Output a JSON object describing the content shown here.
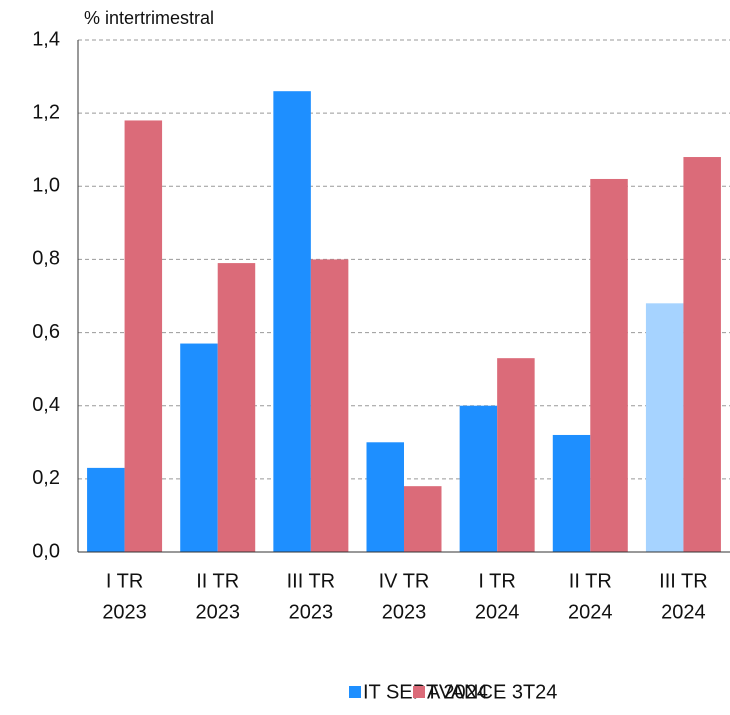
{
  "chart_data": {
    "type": "bar",
    "ylabel": "% intertrimestral",
    "categories": [
      [
        "I TR",
        "2023"
      ],
      [
        "II TR",
        "2023"
      ],
      [
        "III TR",
        "2023"
      ],
      [
        "IV TR",
        "2023"
      ],
      [
        "I TR",
        "2024"
      ],
      [
        "II TR",
        "2024"
      ],
      [
        "III TR",
        "2024"
      ]
    ],
    "series": [
      {
        "name": "IT SEPT 2024",
        "color": "#1e8fff",
        "colors": [
          "#1e8fff",
          "#1e8fff",
          "#1e8fff",
          "#1e8fff",
          "#1e8fff",
          "#1e8fff",
          "#a6d3ff"
        ],
        "values": [
          0.23,
          0.57,
          1.26,
          0.3,
          0.4,
          0.32,
          0.68
        ]
      },
      {
        "name": "AVANCE 3T24",
        "color": "#db6b79",
        "values": [
          1.18,
          0.79,
          0.8,
          0.18,
          0.53,
          1.02,
          1.08
        ]
      }
    ],
    "ylim": [
      0,
      1.4
    ],
    "yticks": [
      {
        "value": 0,
        "label": "0,0"
      },
      {
        "value": 0.2,
        "label": "0,2"
      },
      {
        "value": 0.4,
        "label": "0,4"
      },
      {
        "value": 0.6,
        "label": "0,6"
      },
      {
        "value": 0.8,
        "label": "0,8"
      },
      {
        "value": 1.0,
        "label": "1,0"
      },
      {
        "value": 1.2,
        "label": "1,2"
      },
      {
        "value": 1.4,
        "label": "1,4"
      }
    ],
    "grid": true,
    "legend": "bottom"
  }
}
